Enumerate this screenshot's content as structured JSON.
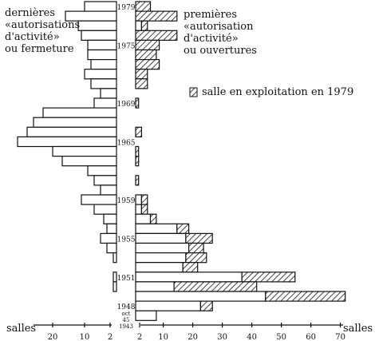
{
  "chart_data": {
    "type": "bar",
    "orientation": "horizontal-butterfly",
    "left_label": "dernières\n«autorisations\nd'activité»\nou fermeture",
    "right_label": "premières\n«autorisation\nd'activité»\nou ouvertures",
    "legend": "salle en exploitation en 1979",
    "axis_left_title": "salles",
    "axis_right_title": "salles",
    "left_ticks": [
      20,
      10,
      2
    ],
    "right_ticks": [
      2,
      10,
      20,
      30,
      40,
      50,
      60,
      70
    ],
    "year_labels": [
      {
        "label": "1979",
        "row": 0
      },
      {
        "label": "1975",
        "row": 4
      },
      {
        "label": "1969",
        "row": 10
      },
      {
        "label": "1965",
        "row": 14
      },
      {
        "label": "1959",
        "row": 20
      },
      {
        "label": "1955",
        "row": 24
      },
      {
        "label": "1951",
        "row": 28
      },
      {
        "label": "1948",
        "row": 31
      },
      {
        "label": "oct\n45\n1943",
        "row": 32
      }
    ],
    "rows": [
      {
        "left": 10,
        "right_open": 0,
        "right_hatched": 5
      },
      {
        "left": 16,
        "right_open": 0,
        "right_hatched": 14
      },
      {
        "left": 12,
        "right_open": 2,
        "right_hatched": 2
      },
      {
        "left": 11,
        "right_open": 0,
        "right_hatched": 14
      },
      {
        "left": 9,
        "right_open": 0,
        "right_hatched": 8
      },
      {
        "left": 9,
        "right_open": 0,
        "right_hatched": 7
      },
      {
        "left": 8,
        "right_open": 0,
        "right_hatched": 8
      },
      {
        "left": 10,
        "right_open": 0,
        "right_hatched": 4
      },
      {
        "left": 8,
        "right_open": 0,
        "right_hatched": 4
      },
      {
        "left": 5,
        "right_open": 0,
        "right_hatched": 0
      },
      {
        "left": 7,
        "right_open": 0,
        "right_hatched": 1
      },
      {
        "left": 23,
        "right_open": 0,
        "right_hatched": 0
      },
      {
        "left": 26,
        "right_open": 0,
        "right_hatched": 0
      },
      {
        "left": 28,
        "right_open": 0,
        "right_hatched": 2
      },
      {
        "left": 31,
        "right_open": 0,
        "right_hatched": 0
      },
      {
        "left": 20,
        "right_open": 0,
        "right_hatched": 1
      },
      {
        "left": 17,
        "right_open": 0,
        "right_hatched": 1
      },
      {
        "left": 9,
        "right_open": 0,
        "right_hatched": 0
      },
      {
        "left": 7,
        "right_open": 0,
        "right_hatched": 1
      },
      {
        "left": 5,
        "right_open": 0,
        "right_hatched": 0
      },
      {
        "left": 11,
        "right_open": 2,
        "right_hatched": 2
      },
      {
        "left": 7,
        "right_open": 2,
        "right_hatched": 2
      },
      {
        "left": 4,
        "right_open": 5,
        "right_hatched": 2
      },
      {
        "left": 3,
        "right_open": 14,
        "right_hatched": 4
      },
      {
        "left": 5,
        "right_open": 17,
        "right_hatched": 9
      },
      {
        "left": 3,
        "right_open": 18,
        "right_hatched": 5
      },
      {
        "left": 1,
        "right_open": 17,
        "right_hatched": 7
      },
      {
        "left": 0,
        "right_open": 16,
        "right_hatched": 5
      },
      {
        "left": 1,
        "right_open": 36,
        "right_hatched": 18
      },
      {
        "left": 1,
        "right_open": 13,
        "right_hatched": 28
      },
      {
        "left": 0,
        "right_open": 44,
        "right_hatched": 27
      },
      {
        "left": 0,
        "right_open": 22,
        "right_hatched": 4
      },
      {
        "left": 0,
        "right_open": 7,
        "right_hatched": 0
      }
    ]
  }
}
